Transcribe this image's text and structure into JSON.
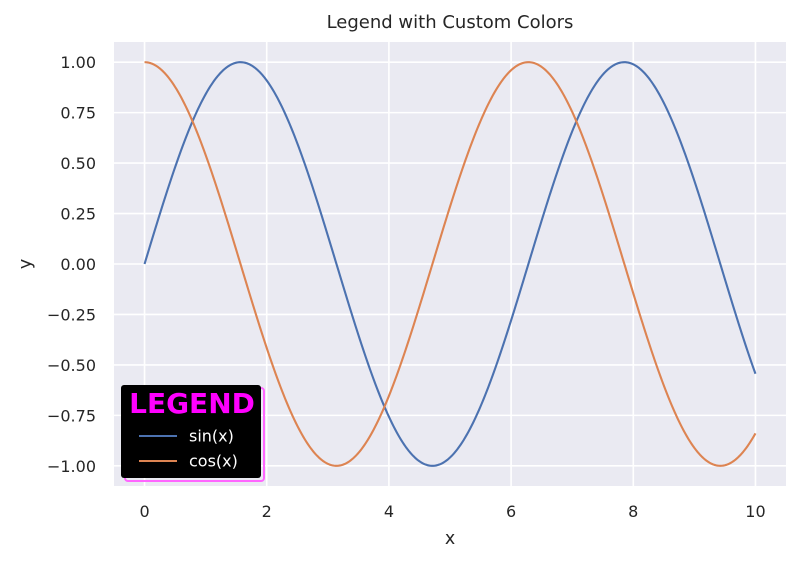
{
  "chart_data": {
    "type": "line",
    "title": "Legend with Custom Colors",
    "xlabel": "x",
    "ylabel": "y",
    "xlim": [
      -0.5,
      10.5
    ],
    "ylim": [
      -1.1,
      1.1
    ],
    "xticks": [
      0,
      2,
      4,
      6,
      8,
      10
    ],
    "xtick_labels": [
      "0",
      "2",
      "4",
      "6",
      "8",
      "10"
    ],
    "yticks": [
      1.0,
      0.75,
      0.5,
      0.25,
      0.0,
      -0.25,
      -0.5,
      -0.75,
      -1.0
    ],
    "ytick_labels": [
      "1.00",
      "0.75",
      "0.50",
      "0.25",
      "0.00",
      "−0.25",
      "−0.50",
      "−0.75",
      "−1.00"
    ],
    "grid": true,
    "background": "#eaeaf2",
    "series": [
      {
        "name": "sin(x)",
        "function": "sin",
        "color": "#4c72b0",
        "x": [
          0.0,
          0.5,
          1.0,
          1.5,
          2.0,
          2.5,
          3.0,
          3.5,
          4.0,
          4.5,
          5.0,
          5.5,
          6.0,
          6.5,
          7.0,
          7.5,
          8.0,
          8.5,
          9.0,
          9.5,
          10.0
        ],
        "y": [
          0.0,
          0.479,
          0.841,
          0.997,
          0.909,
          0.598,
          0.141,
          -0.351,
          -0.757,
          -0.978,
          -0.959,
          -0.706,
          -0.279,
          0.215,
          0.657,
          0.938,
          0.989,
          0.798,
          0.412,
          -0.075,
          -0.544
        ]
      },
      {
        "name": "cos(x)",
        "function": "cos",
        "color": "#dd8452",
        "x": [
          0.0,
          0.5,
          1.0,
          1.5,
          2.0,
          2.5,
          3.0,
          3.5,
          4.0,
          4.5,
          5.0,
          5.5,
          6.0,
          6.5,
          7.0,
          7.5,
          8.0,
          8.5,
          9.0,
          9.5,
          10.0
        ],
        "y": [
          1.0,
          0.878,
          0.54,
          0.071,
          -0.416,
          -0.801,
          -0.99,
          -0.936,
          -0.654,
          -0.211,
          0.284,
          0.709,
          0.96,
          0.977,
          0.754,
          0.347,
          -0.146,
          -0.602,
          -0.911,
          -0.997,
          -0.839
        ]
      }
    ],
    "legend": {
      "title": "LEGEND",
      "title_color": "#ff00ff",
      "background": "#000000",
      "edge_color": "#ff66ff",
      "text_color": "#ffffff",
      "location": "lower left"
    }
  }
}
